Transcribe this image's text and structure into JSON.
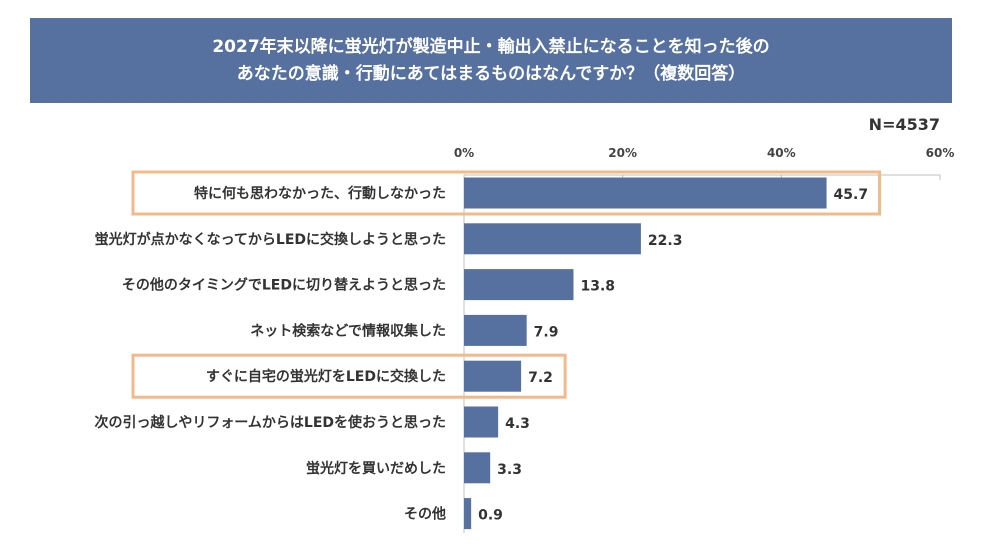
{
  "header": {
    "title_line1": "2027年末以降に蛍光灯が製造中止・輸出入禁止になることを知った後の",
    "title_line2": "あなたの意識・行動にあてはまるものはなんですか？（複数回答）"
  },
  "sample_size": "N=4537",
  "colors": {
    "title_bg": "#56709f",
    "bar": "#56709f",
    "highlight": "#f2b98a"
  },
  "chart_data": {
    "type": "bar",
    "orientation": "horizontal",
    "title": "2027年末以降に蛍光灯が製造中止・輸出入禁止になることを知った後の あなたの意識・行動にあてはまるものはなんですか？（複数回答）",
    "categories": [
      "特に何も思わなかった、行動しなかった",
      "蛍光灯が点かなくなってからLEDに交換しようと思った",
      "その他のタイミングでLEDに切り替えようと思った",
      "ネット検索などで情報収集した",
      "すぐに自宅の蛍光灯をLEDに交換した",
      "次の引っ越しやリフォームからはLEDを使おうと思った",
      "蛍光灯を買いだめした",
      "その他"
    ],
    "values": [
      45.7,
      22.3,
      13.8,
      7.9,
      7.2,
      4.3,
      3.3,
      0.9
    ],
    "value_labels": [
      "45.7",
      "22.3",
      "13.8",
      "7.9",
      "7.2",
      "4.3",
      "3.3",
      "0.9"
    ],
    "highlighted": [
      0,
      4
    ],
    "xlim": [
      0,
      60
    ],
    "ticks": [
      0,
      20,
      40,
      60
    ],
    "tick_labels": [
      "0%",
      "20%",
      "40%",
      "60%"
    ],
    "xlabel": "",
    "ylabel": ""
  }
}
